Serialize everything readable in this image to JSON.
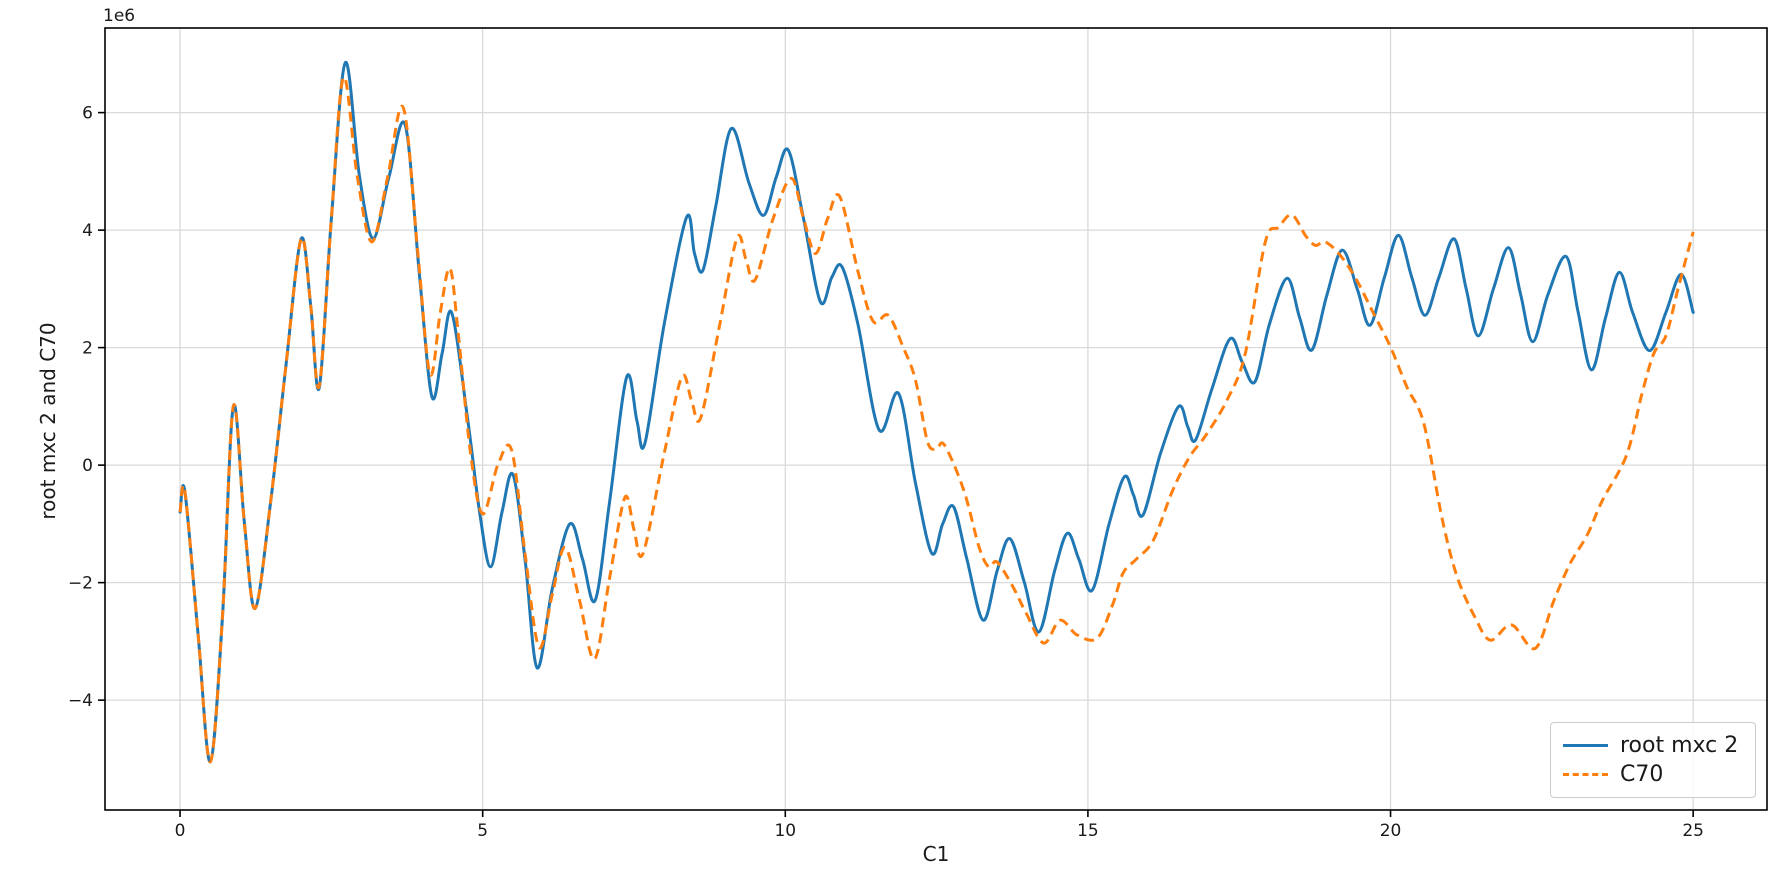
{
  "chart_data": {
    "type": "line",
    "title": "",
    "xlabel": "C1",
    "ylabel": "root mxc 2 and C70",
    "offset_text": "1e6",
    "y_unit_multiplier": 1000000,
    "xlim": [
      -1.24,
      26.22
    ],
    "ylim": [
      -5.87,
      7.44
    ],
    "x_ticks": [
      0,
      5,
      10,
      15,
      20,
      25
    ],
    "x_tick_labels": [
      "0",
      "5",
      "10",
      "15",
      "20",
      "25"
    ],
    "y_ticks": [
      -4,
      -2,
      0,
      2,
      4,
      6
    ],
    "y_tick_labels": [
      "−4",
      "−2",
      "0",
      "2",
      "4",
      "6"
    ],
    "grid": true,
    "grid_color": "#d9d9d9",
    "spine_color": "#000000",
    "legend": {
      "position": "lower right"
    },
    "series": [
      {
        "name": "root mxc 2",
        "color": "#1f77b4",
        "style": "solid",
        "points": [
          [
            0,
            -0.8
          ],
          [
            0.08,
            -0.45
          ],
          [
            0.3,
            -2.9
          ],
          [
            0.5,
            -5.05
          ],
          [
            0.7,
            -2.6
          ],
          [
            0.88,
            1.0
          ],
          [
            1.06,
            -0.95
          ],
          [
            1.24,
            -2.44
          ],
          [
            1.5,
            -0.6
          ],
          [
            1.75,
            1.7
          ],
          [
            2.0,
            3.85
          ],
          [
            2.16,
            2.7
          ],
          [
            2.3,
            1.32
          ],
          [
            2.5,
            4.2
          ],
          [
            2.73,
            6.85
          ],
          [
            2.96,
            4.95
          ],
          [
            3.19,
            3.86
          ],
          [
            3.45,
            4.9
          ],
          [
            3.72,
            5.79
          ],
          [
            3.95,
            3.3
          ],
          [
            4.16,
            1.17
          ],
          [
            4.33,
            1.9
          ],
          [
            4.49,
            2.59
          ],
          [
            4.75,
            0.8
          ],
          [
            4.95,
            -0.8
          ],
          [
            5.13,
            -1.73
          ],
          [
            5.32,
            -0.8
          ],
          [
            5.5,
            -0.16
          ],
          [
            5.7,
            -1.6
          ],
          [
            5.9,
            -3.45
          ],
          [
            6.15,
            -2.1
          ],
          [
            6.44,
            -1.0
          ],
          [
            6.65,
            -1.6
          ],
          [
            6.86,
            -2.3
          ],
          [
            7.1,
            -0.6
          ],
          [
            7.38,
            1.5
          ],
          [
            7.55,
            0.75
          ],
          [
            7.68,
            0.37
          ],
          [
            8.0,
            2.4
          ],
          [
            8.37,
            4.22
          ],
          [
            8.5,
            3.6
          ],
          [
            8.64,
            3.32
          ],
          [
            8.85,
            4.4
          ],
          [
            9.11,
            5.73
          ],
          [
            9.4,
            4.8
          ],
          [
            9.64,
            4.25
          ],
          [
            9.85,
            4.9
          ],
          [
            10.05,
            5.36
          ],
          [
            10.3,
            4.2
          ],
          [
            10.58,
            2.78
          ],
          [
            10.77,
            3.2
          ],
          [
            10.94,
            3.37
          ],
          [
            11.2,
            2.4
          ],
          [
            11.55,
            0.6
          ],
          [
            11.87,
            1.22
          ],
          [
            12.15,
            -0.3
          ],
          [
            12.42,
            -1.5
          ],
          [
            12.6,
            -1.0
          ],
          [
            12.78,
            -0.71
          ],
          [
            13.0,
            -1.6
          ],
          [
            13.27,
            -2.64
          ],
          [
            13.5,
            -1.8
          ],
          [
            13.71,
            -1.25
          ],
          [
            13.95,
            -2.0
          ],
          [
            14.19,
            -2.84
          ],
          [
            14.45,
            -1.8
          ],
          [
            14.66,
            -1.16
          ],
          [
            14.85,
            -1.6
          ],
          [
            15.07,
            -2.13
          ],
          [
            15.35,
            -1.0
          ],
          [
            15.6,
            -0.2
          ],
          [
            15.75,
            -0.5
          ],
          [
            15.91,
            -0.85
          ],
          [
            16.2,
            0.2
          ],
          [
            16.5,
            1.0
          ],
          [
            16.65,
            0.65
          ],
          [
            16.78,
            0.43
          ],
          [
            17.05,
            1.3
          ],
          [
            17.35,
            2.15
          ],
          [
            17.55,
            1.75
          ],
          [
            17.76,
            1.42
          ],
          [
            18.0,
            2.4
          ],
          [
            18.29,
            3.18
          ],
          [
            18.5,
            2.5
          ],
          [
            18.7,
            1.96
          ],
          [
            18.95,
            2.9
          ],
          [
            19.2,
            3.66
          ],
          [
            19.45,
            3.0
          ],
          [
            19.66,
            2.38
          ],
          [
            19.9,
            3.2
          ],
          [
            20.13,
            3.91
          ],
          [
            20.35,
            3.2
          ],
          [
            20.57,
            2.55
          ],
          [
            20.8,
            3.2
          ],
          [
            21.05,
            3.85
          ],
          [
            21.25,
            3.0
          ],
          [
            21.45,
            2.2
          ],
          [
            21.7,
            3.0
          ],
          [
            21.95,
            3.7
          ],
          [
            22.15,
            2.9
          ],
          [
            22.35,
            2.1
          ],
          [
            22.6,
            2.9
          ],
          [
            22.9,
            3.55
          ],
          [
            23.1,
            2.6
          ],
          [
            23.32,
            1.62
          ],
          [
            23.55,
            2.5
          ],
          [
            23.78,
            3.28
          ],
          [
            24.0,
            2.6
          ],
          [
            24.28,
            1.95
          ],
          [
            24.55,
            2.6
          ],
          [
            24.8,
            3.25
          ],
          [
            25.0,
            2.6
          ]
        ]
      },
      {
        "name": "C70",
        "color": "#ff7f0e",
        "style": "dashed",
        "points": [
          [
            0,
            -0.8
          ],
          [
            0.08,
            -0.45
          ],
          [
            0.3,
            -2.9
          ],
          [
            0.5,
            -5.05
          ],
          [
            0.7,
            -2.6
          ],
          [
            0.88,
            1.0
          ],
          [
            1.06,
            -0.95
          ],
          [
            1.24,
            -2.44
          ],
          [
            1.5,
            -0.6
          ],
          [
            1.75,
            1.7
          ],
          [
            2.0,
            3.85
          ],
          [
            2.16,
            2.7
          ],
          [
            2.3,
            1.35
          ],
          [
            2.5,
            4.2
          ],
          [
            2.7,
            6.6
          ],
          [
            2.93,
            4.9
          ],
          [
            3.17,
            3.8
          ],
          [
            3.43,
            4.9
          ],
          [
            3.69,
            6.08
          ],
          [
            3.93,
            3.6
          ],
          [
            4.13,
            1.55
          ],
          [
            4.3,
            2.6
          ],
          [
            4.46,
            3.35
          ],
          [
            4.6,
            2.2
          ],
          [
            4.8,
            0.2
          ],
          [
            5.0,
            -0.83
          ],
          [
            5.25,
            0.0
          ],
          [
            5.48,
            0.25
          ],
          [
            5.7,
            -1.5
          ],
          [
            5.93,
            -3.1
          ],
          [
            6.15,
            -2.2
          ],
          [
            6.36,
            -1.4
          ],
          [
            6.6,
            -2.3
          ],
          [
            6.85,
            -3.3
          ],
          [
            7.1,
            -1.9
          ],
          [
            7.35,
            -0.55
          ],
          [
            7.5,
            -1.1
          ],
          [
            7.65,
            -1.5
          ],
          [
            8.0,
            0.2
          ],
          [
            8.29,
            1.5
          ],
          [
            8.45,
            1.1
          ],
          [
            8.6,
            0.8
          ],
          [
            8.9,
            2.3
          ],
          [
            9.2,
            3.86
          ],
          [
            9.35,
            3.5
          ],
          [
            9.5,
            3.15
          ],
          [
            9.8,
            4.2
          ],
          [
            10.1,
            4.88
          ],
          [
            10.3,
            4.2
          ],
          [
            10.5,
            3.6
          ],
          [
            10.7,
            4.2
          ],
          [
            10.9,
            4.57
          ],
          [
            11.2,
            3.3
          ],
          [
            11.45,
            2.45
          ],
          [
            11.7,
            2.55
          ],
          [
            11.95,
            2.0
          ],
          [
            12.15,
            1.45
          ],
          [
            12.35,
            0.4
          ],
          [
            12.5,
            0.28
          ],
          [
            12.63,
            0.34
          ],
          [
            12.95,
            -0.43
          ],
          [
            13.2,
            -1.39
          ],
          [
            13.36,
            -1.73
          ],
          [
            13.5,
            -1.65
          ],
          [
            13.76,
            -2.07
          ],
          [
            13.98,
            -2.52
          ],
          [
            14.27,
            -3.03
          ],
          [
            14.54,
            -2.64
          ],
          [
            14.82,
            -2.89
          ],
          [
            15.15,
            -2.95
          ],
          [
            15.4,
            -2.4
          ],
          [
            15.58,
            -1.84
          ],
          [
            15.8,
            -1.6
          ],
          [
            16.08,
            -1.28
          ],
          [
            16.4,
            -0.43
          ],
          [
            16.68,
            0.14
          ],
          [
            16.95,
            0.51
          ],
          [
            17.3,
            1.11
          ],
          [
            17.6,
            1.9
          ],
          [
            17.93,
            3.8
          ],
          [
            18.15,
            4.05
          ],
          [
            18.37,
            4.26
          ],
          [
            18.6,
            3.9
          ],
          [
            18.76,
            3.74
          ],
          [
            18.92,
            3.8
          ],
          [
            19.17,
            3.57
          ],
          [
            19.44,
            3.15
          ],
          [
            19.72,
            2.58
          ],
          [
            20.0,
            2.01
          ],
          [
            20.27,
            1.33
          ],
          [
            20.55,
            0.71
          ],
          [
            20.85,
            -0.9
          ],
          [
            21.1,
            -1.9
          ],
          [
            21.4,
            -2.6
          ],
          [
            21.65,
            -2.98
          ],
          [
            22.0,
            -2.72
          ],
          [
            22.39,
            -3.12
          ],
          [
            22.7,
            -2.3
          ],
          [
            22.97,
            -1.67
          ],
          [
            23.25,
            -1.19
          ],
          [
            23.5,
            -0.6
          ],
          [
            23.9,
            0.17
          ],
          [
            24.15,
            1.2
          ],
          [
            24.35,
            1.9
          ],
          [
            24.55,
            2.2
          ],
          [
            24.75,
            3.0
          ],
          [
            25.0,
            3.97
          ]
        ]
      }
    ]
  }
}
